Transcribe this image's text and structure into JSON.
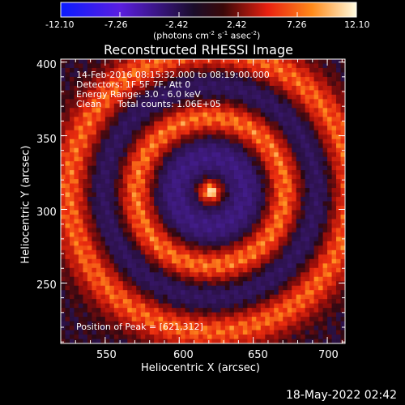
{
  "colorbar": {
    "ticks": [
      "-12.10",
      "-7.26",
      "-2.42",
      "2.42",
      "7.26",
      "12.10"
    ],
    "units_text": "(photons cm",
    "units_pieces": [
      "(photons cm",
      "-2",
      " s",
      "-1",
      " asec",
      "-2",
      ")"
    ]
  },
  "chart_data": {
    "type": "heatmap",
    "title": "Reconstructed RHESSI Image",
    "xlabel": "Heliocentric X (arcsec)",
    "ylabel": "Heliocentric Y (arcsec)",
    "xlim": [
      520,
      712
    ],
    "ylim": [
      209,
      402
    ],
    "x_ticks": [
      550,
      600,
      650,
      700
    ],
    "y_ticks": [
      250,
      300,
      350,
      400
    ],
    "color_range": [
      -12.1,
      12.1
    ],
    "colormap": "red-temperature with blue/violet negatives",
    "peak": {
      "x": 621,
      "y": 312
    },
    "annotations": {
      "time": "14-Feb-2016 08:15:32.000 to 08:19:00.000",
      "detectors": "Detectors: 1F 5F 7F, Att 0",
      "energy": "Energy Range: 3.0 - 6.0 keV",
      "method": "Clean",
      "counts": "Total counts: 1.06E+05",
      "peak_label": "Position of Peak = [621,312]"
    }
  },
  "footer": {
    "timestamp": "18-May-2022 02:42"
  },
  "colors": {
    "background": "#000000",
    "text": "#ffffff"
  }
}
